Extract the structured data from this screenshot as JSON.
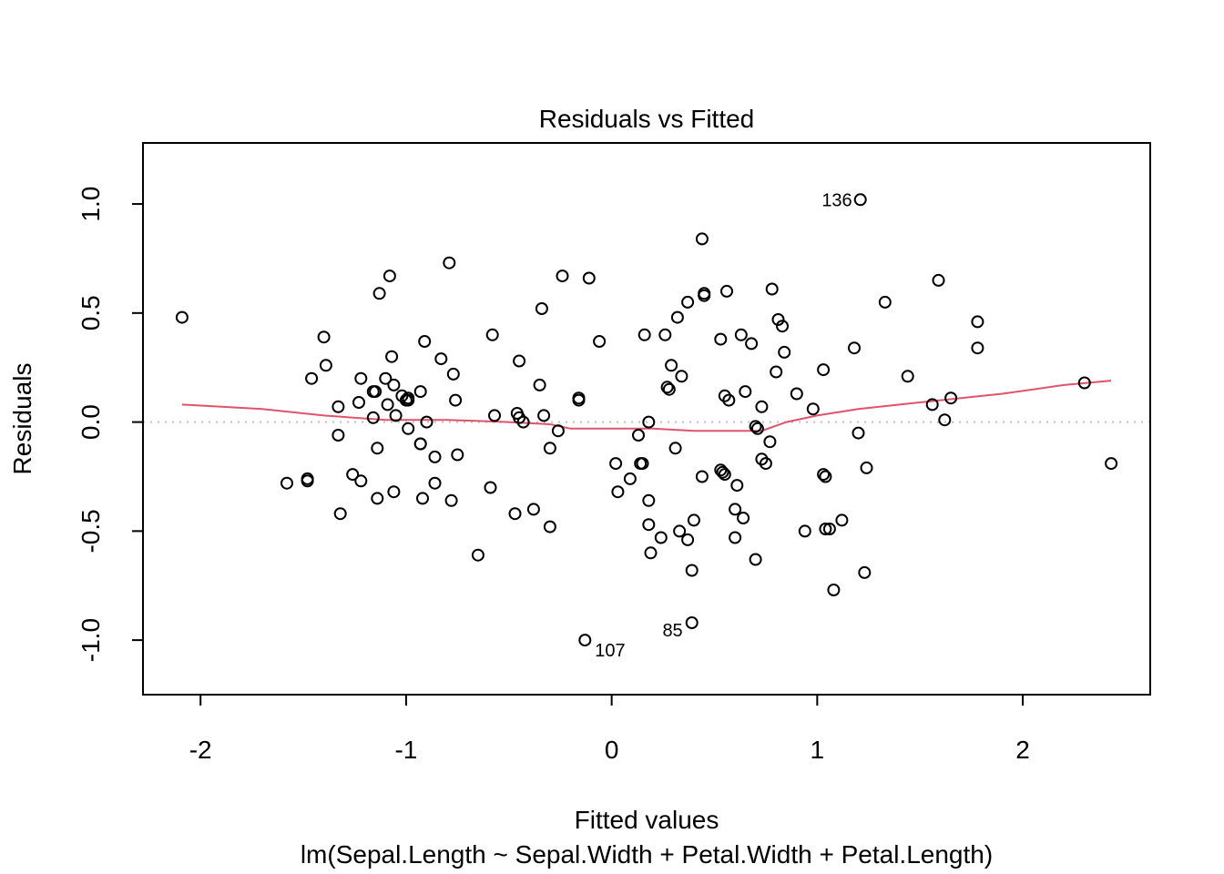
{
  "chart_data": {
    "type": "scatter",
    "title": "Residuals vs Fitted",
    "xlabel": "Fitted values",
    "ylabel": "Residuals",
    "subtitle": "lm(Sepal.Length ~ Sepal.Width + Petal.Width + Petal.Length)",
    "xlim": [
      -2.28,
      2.62
    ],
    "ylim": [
      -1.25,
      1.28
    ],
    "xticks": [
      "-2",
      "-1",
      "0",
      "1",
      "2"
    ],
    "xtick_values": [
      -2,
      -1,
      0,
      1,
      2
    ],
    "yticks": [
      "-1.0",
      "-0.5",
      "0.0",
      "0.5",
      "1.0"
    ],
    "ytick_values": [
      -1.0,
      -0.5,
      0.0,
      0.5,
      1.0
    ],
    "zero_line": {
      "y": 0,
      "color": "#bebebe",
      "style": "dotted"
    },
    "smooth_color": "#DF536B",
    "point_color": "#000000",
    "points": [
      [
        -2.09,
        0.48
      ],
      [
        -1.58,
        -0.28
      ],
      [
        -1.48,
        -0.26
      ],
      [
        -1.48,
        -0.27
      ],
      [
        -1.46,
        0.2
      ],
      [
        -1.4,
        0.39
      ],
      [
        -1.39,
        0.26
      ],
      [
        -1.33,
        0.07
      ],
      [
        -1.33,
        -0.06
      ],
      [
        -1.32,
        -0.42
      ],
      [
        -1.26,
        -0.24
      ],
      [
        -1.23,
        0.09
      ],
      [
        -1.22,
        -0.27
      ],
      [
        -1.22,
        0.2
      ],
      [
        -1.16,
        0.14
      ],
      [
        -1.16,
        0.02
      ],
      [
        -1.15,
        0.14
      ],
      [
        -1.14,
        -0.12
      ],
      [
        -1.14,
        -0.35
      ],
      [
        -1.13,
        0.59
      ],
      [
        -1.1,
        0.2
      ],
      [
        -1.09,
        0.08
      ],
      [
        -1.08,
        0.67
      ],
      [
        -1.07,
        0.3
      ],
      [
        -1.06,
        -0.32
      ],
      [
        -1.06,
        0.17
      ],
      [
        -1.05,
        0.03
      ],
      [
        -1.02,
        0.12
      ],
      [
        -1.0,
        0.1
      ],
      [
        -0.99,
        0.11
      ],
      [
        -0.99,
        0.1
      ],
      [
        -0.99,
        -0.03
      ],
      [
        -0.93,
        -0.1
      ],
      [
        -0.93,
        -0.1
      ],
      [
        -0.93,
        0.14
      ],
      [
        -0.92,
        -0.35
      ],
      [
        -0.91,
        0.37
      ],
      [
        -0.9,
        0.0
      ],
      [
        -0.86,
        -0.16
      ],
      [
        -0.86,
        -0.28
      ],
      [
        -0.83,
        0.29
      ],
      [
        -0.79,
        0.73
      ],
      [
        -0.78,
        -0.36
      ],
      [
        -0.77,
        0.22
      ],
      [
        -0.76,
        0.1
      ],
      [
        -0.75,
        -0.15
      ],
      [
        -0.65,
        -0.61
      ],
      [
        -0.59,
        -0.3
      ],
      [
        -0.58,
        0.4
      ],
      [
        -0.57,
        0.03
      ],
      [
        -0.47,
        -0.42
      ],
      [
        -0.46,
        0.04
      ],
      [
        -0.45,
        0.28
      ],
      [
        -0.45,
        0.02
      ],
      [
        -0.43,
        0.0
      ],
      [
        -0.38,
        -0.4
      ],
      [
        -0.35,
        0.17
      ],
      [
        -0.34,
        0.52
      ],
      [
        -0.33,
        0.03
      ],
      [
        -0.3,
        -0.12
      ],
      [
        -0.3,
        -0.48
      ],
      [
        -0.26,
        -0.04
      ],
      [
        -0.24,
        0.67
      ],
      [
        -0.16,
        0.11
      ],
      [
        -0.16,
        0.1
      ],
      [
        -0.13,
        -1.0
      ],
      [
        -0.11,
        0.66
      ],
      [
        -0.06,
        0.37
      ],
      [
        0.02,
        -0.19
      ],
      [
        0.03,
        -0.32
      ],
      [
        0.09,
        -0.26
      ],
      [
        0.13,
        -0.06
      ],
      [
        0.14,
        -0.19
      ],
      [
        0.15,
        -0.19
      ],
      [
        0.16,
        0.4
      ],
      [
        0.18,
        -0.47
      ],
      [
        0.18,
        -0.36
      ],
      [
        0.18,
        0.0
      ],
      [
        0.19,
        -0.6
      ],
      [
        0.24,
        -0.53
      ],
      [
        0.26,
        0.4
      ],
      [
        0.27,
        0.16
      ],
      [
        0.28,
        0.15
      ],
      [
        0.29,
        0.26
      ],
      [
        0.31,
        -0.12
      ],
      [
        0.32,
        0.48
      ],
      [
        0.33,
        -0.5
      ],
      [
        0.34,
        0.21
      ],
      [
        0.37,
        0.55
      ],
      [
        0.37,
        -0.54
      ],
      [
        0.39,
        -0.68
      ],
      [
        0.39,
        -0.92
      ],
      [
        0.4,
        -0.45
      ],
      [
        0.44,
        -0.25
      ],
      [
        0.44,
        0.84
      ],
      [
        0.45,
        0.59
      ],
      [
        0.45,
        0.58
      ],
      [
        0.53,
        -0.22
      ],
      [
        0.53,
        0.38
      ],
      [
        0.54,
        -0.23
      ],
      [
        0.55,
        -0.24
      ],
      [
        0.55,
        0.12
      ],
      [
        0.56,
        0.6
      ],
      [
        0.57,
        0.1
      ],
      [
        0.6,
        -0.53
      ],
      [
        0.6,
        -0.4
      ],
      [
        0.61,
        -0.29
      ],
      [
        0.63,
        0.4
      ],
      [
        0.64,
        -0.44
      ],
      [
        0.65,
        0.14
      ],
      [
        0.68,
        0.36
      ],
      [
        0.7,
        -0.63
      ],
      [
        0.7,
        -0.02
      ],
      [
        0.71,
        -0.03
      ],
      [
        0.73,
        0.07
      ],
      [
        0.73,
        -0.17
      ],
      [
        0.75,
        -0.19
      ],
      [
        0.77,
        -0.09
      ],
      [
        0.78,
        0.61
      ],
      [
        0.8,
        0.23
      ],
      [
        0.81,
        0.47
      ],
      [
        0.83,
        0.44
      ],
      [
        0.84,
        0.32
      ],
      [
        0.9,
        0.13
      ],
      [
        0.94,
        -0.5
      ],
      [
        0.98,
        0.06
      ],
      [
        1.03,
        -0.24
      ],
      [
        1.03,
        0.24
      ],
      [
        1.04,
        -0.25
      ],
      [
        1.04,
        -0.49
      ],
      [
        1.06,
        -0.49
      ],
      [
        1.08,
        -0.77
      ],
      [
        1.12,
        -0.45
      ],
      [
        1.18,
        0.34
      ],
      [
        1.2,
        -0.05
      ],
      [
        1.21,
        1.02
      ],
      [
        1.23,
        -0.69
      ],
      [
        1.24,
        -0.21
      ],
      [
        1.33,
        0.55
      ],
      [
        1.44,
        0.21
      ],
      [
        1.56,
        0.08
      ],
      [
        1.59,
        0.65
      ],
      [
        1.62,
        0.01
      ],
      [
        1.65,
        0.11
      ],
      [
        1.78,
        0.46
      ],
      [
        1.78,
        0.34
      ],
      [
        2.3,
        0.18
      ],
      [
        2.43,
        -0.19
      ]
    ],
    "smooth_line": [
      [
        -2.09,
        0.08
      ],
      [
        -1.7,
        0.06
      ],
      [
        -1.4,
        0.03
      ],
      [
        -1.1,
        0.01
      ],
      [
        -0.8,
        0.01
      ],
      [
        -0.5,
        0.0
      ],
      [
        -0.3,
        -0.01
      ],
      [
        -0.2,
        -0.03
      ],
      [
        0.0,
        -0.03
      ],
      [
        0.2,
        -0.03
      ],
      [
        0.4,
        -0.04
      ],
      [
        0.6,
        -0.04
      ],
      [
        0.73,
        -0.04
      ],
      [
        0.85,
        0.0
      ],
      [
        1.0,
        0.03
      ],
      [
        1.2,
        0.06
      ],
      [
        1.4,
        0.08
      ],
      [
        1.6,
        0.1
      ],
      [
        1.9,
        0.13
      ],
      [
        2.2,
        0.17
      ],
      [
        2.43,
        0.19
      ]
    ],
    "point_labels": [
      {
        "text": "136",
        "x": 1.21,
        "y": 1.02,
        "anchor": "end"
      },
      {
        "text": "107",
        "x": -0.13,
        "y": -1.0,
        "anchor": "start-below"
      },
      {
        "text": "85",
        "x": 0.39,
        "y": -0.92,
        "anchor": "end-below"
      }
    ]
  }
}
